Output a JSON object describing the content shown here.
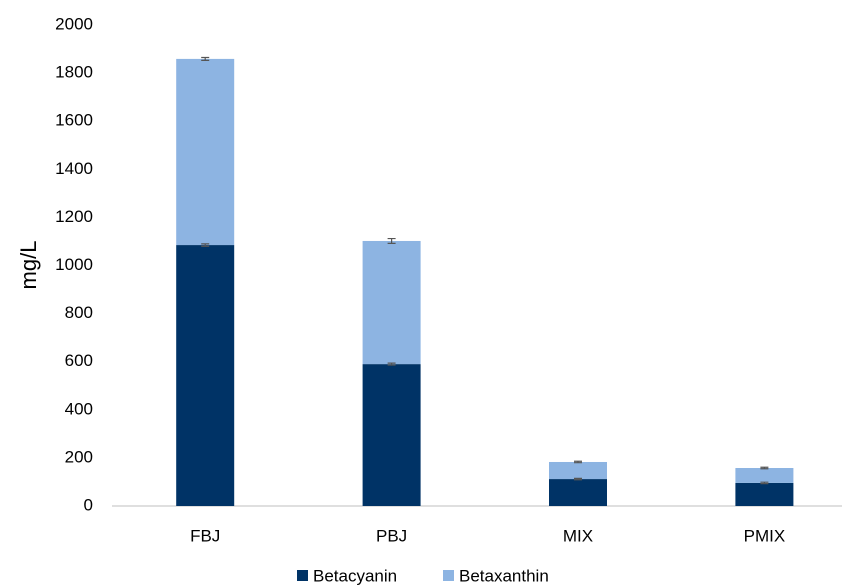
{
  "chart_data": {
    "type": "bar",
    "stacked": true,
    "y_label": "mg/L",
    "categories": [
      "FBJ",
      "PBJ",
      "MIX",
      "PMIX"
    ],
    "series": [
      {
        "name": "Betacyanin",
        "color": "#003366",
        "values": [
          1085,
          590,
          112,
          96
        ],
        "errors": [
          5,
          4,
          3,
          3
        ]
      },
      {
        "name": "Betaxanthin",
        "color": "#8db4e2",
        "values": [
          774,
          512,
          71,
          62
        ],
        "errors": [
          6,
          10,
          3,
          3
        ]
      }
    ],
    "ylim": [
      0,
      2000
    ],
    "yticks": [
      0,
      200,
      400,
      600,
      800,
      1000,
      1200,
      1400,
      1600,
      1800,
      2000
    ],
    "grid": false,
    "legend": "bottom"
  }
}
